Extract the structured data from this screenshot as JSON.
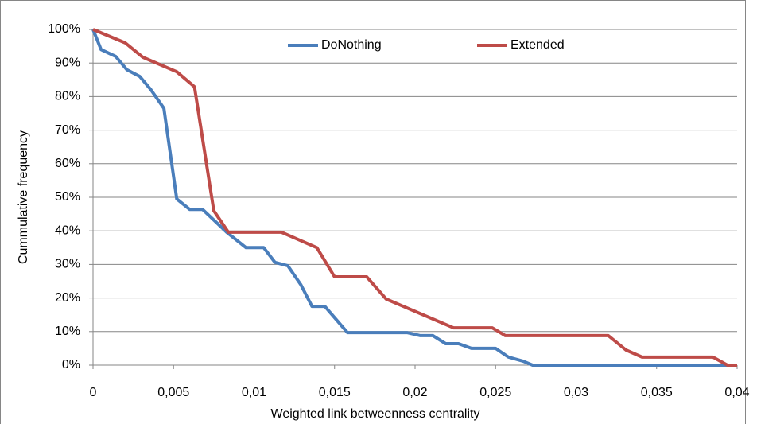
{
  "chart_data": {
    "type": "line",
    "x_label": "Weighted link betweenness centrality",
    "y_label": "Cummulative frequency",
    "xlim": [
      0,
      0.04
    ],
    "xticks": [
      0,
      {
        "value": 0.005,
        "label": "0,005"
      },
      {
        "value": 0.01,
        "label": "0,01"
      },
      {
        "value": 0.015,
        "label": "0,015"
      },
      {
        "value": 0.02,
        "label": "0,02"
      },
      {
        "value": 0.025,
        "label": "0,025"
      },
      {
        "value": 0.03,
        "label": "0,03"
      },
      {
        "value": 0.035,
        "label": "0,035"
      },
      {
        "value": 0.04,
        "label": "0,04"
      }
    ],
    "ylim": [
      0,
      100
    ],
    "yticks": [
      {
        "value": 0,
        "label": "0%"
      },
      {
        "value": 10,
        "label": "10%"
      },
      {
        "value": 20,
        "label": "20%"
      },
      {
        "value": 30,
        "label": "30%"
      },
      {
        "value": 40,
        "label": "40%"
      },
      {
        "value": 50,
        "label": "50%"
      },
      {
        "value": 60,
        "label": "60%"
      },
      {
        "value": 70,
        "label": "70%"
      },
      {
        "value": 80,
        "label": "80%"
      },
      {
        "value": 90,
        "label": "90%"
      },
      {
        "value": 100,
        "label": "100%"
      }
    ],
    "grid": true,
    "legend": "top",
    "series": [
      {
        "name": "DoNothing",
        "color": "#4a7ebb",
        "x": [
          0,
          0.0005,
          0.0014,
          0.0021,
          0.0029,
          0.0036,
          0.0044,
          0.0052,
          0.006,
          0.0068,
          0.0083,
          0.0095,
          0.0106,
          0.0113,
          0.0121,
          0.0129,
          0.0136,
          0.0144,
          0.0158,
          0.0195,
          0.0203,
          0.0211,
          0.0219,
          0.0227,
          0.0235,
          0.025,
          0.0258,
          0.0267,
          0.0273,
          0.04
        ],
        "values": [
          100,
          94,
          92,
          88,
          86,
          82,
          76.5,
          49.5,
          46.4,
          46.4,
          39.6,
          35,
          35,
          30.6,
          29.6,
          24,
          17.5,
          17.5,
          9.7,
          9.7,
          8.8,
          8.8,
          6.4,
          6.4,
          5,
          5,
          2.4,
          1.2,
          0,
          0
        ]
      },
      {
        "name": "Extended",
        "color": "#be4b48",
        "x": [
          0,
          0.002,
          0.0031,
          0.0052,
          0.0063,
          0.0075,
          0.0084,
          0.0117,
          0.0139,
          0.015,
          0.017,
          0.0182,
          0.0224,
          0.0248,
          0.0256,
          0.032,
          0.0331,
          0.0341,
          0.0385,
          0.0394,
          0.04
        ],
        "values": [
          100,
          96,
          91.7,
          87.4,
          82.9,
          46,
          39.6,
          39.6,
          35,
          26.3,
          26.3,
          19.7,
          11.1,
          11.1,
          8.8,
          8.8,
          4.5,
          2.4,
          2.4,
          0,
          0
        ]
      }
    ]
  }
}
